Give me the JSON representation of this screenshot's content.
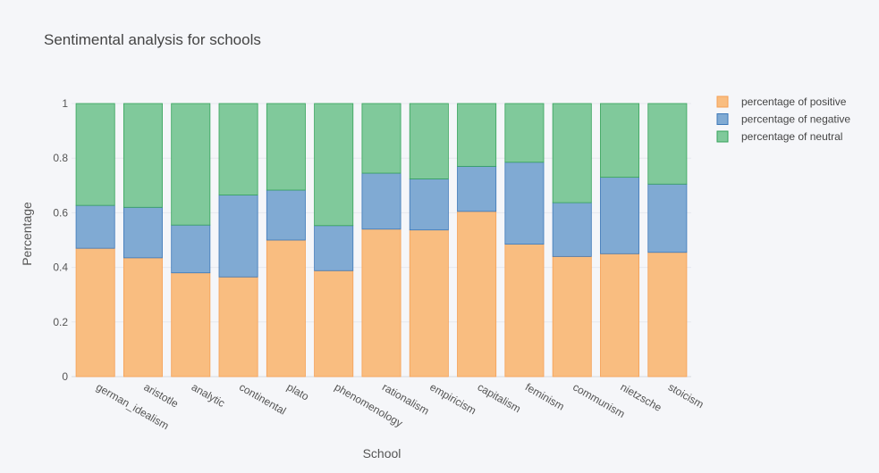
{
  "chart_data": {
    "type": "bar",
    "stacked": true,
    "title": "Sentimental analysis for schools",
    "xlabel": "School",
    "ylabel": "Percentage",
    "ylim": [
      0,
      1
    ],
    "yticks": [
      "0",
      "0.2",
      "0.4",
      "0.6",
      "0.8",
      "1"
    ],
    "grid": true,
    "legend_position": "top-right",
    "categories": [
      "german_idealism",
      "aristotle",
      "analytic",
      "continental",
      "plato",
      "phenomenology",
      "rationalism",
      "empiricism",
      "capitalism",
      "feminism",
      "communism",
      "nietzsche",
      "stoicism"
    ],
    "series": [
      {
        "name": "percentage of positive",
        "color": "#f9bd80",
        "stroke": "#f5a055",
        "values": [
          0.47,
          0.435,
          0.38,
          0.365,
          0.5,
          0.388,
          0.54,
          0.537,
          0.605,
          0.485,
          0.44,
          0.45,
          0.455
        ]
      },
      {
        "name": "percentage of negative",
        "color": "#80aad3",
        "stroke": "#3d78b8",
        "values": [
          0.157,
          0.185,
          0.175,
          0.3,
          0.183,
          0.165,
          0.205,
          0.187,
          0.165,
          0.3,
          0.197,
          0.28,
          0.25
        ]
      },
      {
        "name": "percentage of neutral",
        "color": "#80c99b",
        "stroke": "#35a35a",
        "values": [
          0.373,
          0.38,
          0.445,
          0.335,
          0.317,
          0.447,
          0.255,
          0.276,
          0.23,
          0.215,
          0.363,
          0.27,
          0.295
        ]
      }
    ]
  }
}
